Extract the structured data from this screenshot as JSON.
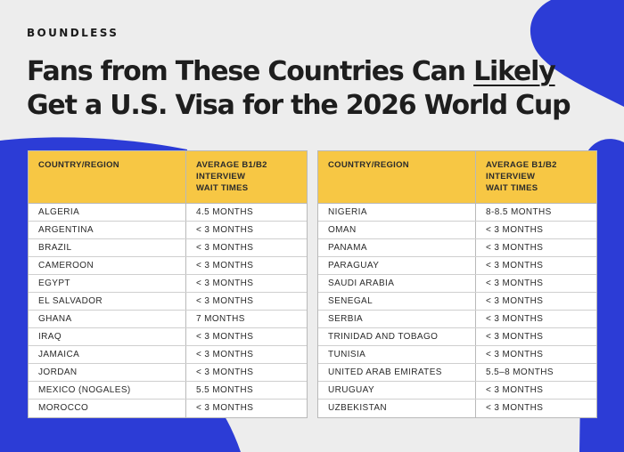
{
  "brand": "BOUNDLESS",
  "headline": {
    "line1_before": "Fans from These Countries Can ",
    "line1_emphasis": "Likely",
    "line2": "Get a U.S. Visa for the 2026 World Cup"
  },
  "colors": {
    "background": "#ededed",
    "blue": "#2c3cd6",
    "header_yellow": "#f7c744"
  },
  "columns": {
    "country": "COUNTRY/REGION",
    "wait": "AVERAGE B1/B2\nINTERVIEW\nWAIT TIMES"
  },
  "left_table": [
    {
      "country": "ALGERIA",
      "wait": "4.5 MONTHS"
    },
    {
      "country": "ARGENTINA",
      "wait": "< 3 MONTHS"
    },
    {
      "country": "BRAZIL",
      "wait": "< 3 MONTHS"
    },
    {
      "country": "CAMEROON",
      "wait": "< 3 MONTHS"
    },
    {
      "country": "EGYPT",
      "wait": "< 3 MONTHS"
    },
    {
      "country": "EL SALVADOR",
      "wait": "< 3 MONTHS"
    },
    {
      "country": "GHANA",
      "wait": "7 MONTHS"
    },
    {
      "country": "IRAQ",
      "wait": "< 3 MONTHS"
    },
    {
      "country": "JAMAICA",
      "wait": "< 3 MONTHS"
    },
    {
      "country": "JORDAN",
      "wait": "< 3 MONTHS"
    },
    {
      "country": "MEXICO (NOGALES)",
      "wait": "5.5 MONTHS"
    },
    {
      "country": "MOROCCO",
      "wait": "< 3 MONTHS"
    }
  ],
  "right_table": [
    {
      "country": "NIGERIA",
      "wait": "8-8.5 MONTHS"
    },
    {
      "country": "OMAN",
      "wait": "< 3 MONTHS"
    },
    {
      "country": "PANAMA",
      "wait": "< 3 MONTHS"
    },
    {
      "country": "PARAGUAY",
      "wait": "< 3 MONTHS"
    },
    {
      "country": "SAUDI ARABIA",
      "wait": "< 3 MONTHS"
    },
    {
      "country": "SENEGAL",
      "wait": "< 3 MONTHS"
    },
    {
      "country": "SERBIA",
      "wait": "< 3 MONTHS"
    },
    {
      "country": "TRINIDAD AND TOBAGO",
      "wait": "< 3 MONTHS"
    },
    {
      "country": "TUNISIA",
      "wait": "< 3 MONTHS"
    },
    {
      "country": "UNITED ARAB EMIRATES",
      "wait": "5.5–8 MONTHS"
    },
    {
      "country": "URUGUAY",
      "wait": "< 3 MONTHS"
    },
    {
      "country": "UZBEKISTAN",
      "wait": "< 3 MONTHS"
    }
  ]
}
